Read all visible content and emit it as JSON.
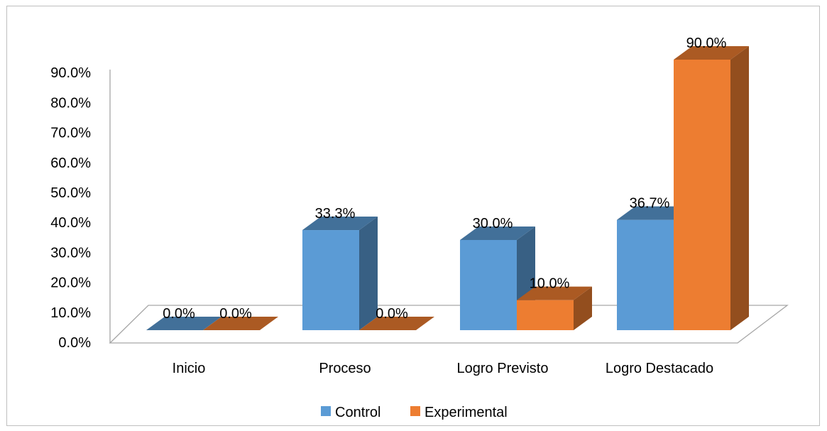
{
  "chart_data": {
    "type": "bar",
    "style": "3d-clustered-column",
    "categories": [
      "Inicio",
      "Proceso",
      "Logro Previsto",
      "Logro Destacado"
    ],
    "series": [
      {
        "name": "Control",
        "values": [
          0.0,
          33.3,
          30.0,
          36.7
        ],
        "labels": [
          "0.0%",
          "33.3%",
          "30.0%",
          "36.7%"
        ],
        "color": "#5b9bd5"
      },
      {
        "name": "Experimental",
        "values": [
          0.0,
          0.0,
          10.0,
          90.0
        ],
        "labels": [
          "0.0%",
          "0.0%",
          "10.0%",
          "90.0%"
        ],
        "color": "#ed7d31"
      }
    ],
    "y_ticks": [
      "0.0%",
      "10.0%",
      "20.0%",
      "30.0%",
      "40.0%",
      "50.0%",
      "60.0%",
      "70.0%",
      "80.0%",
      "90.0%"
    ],
    "ylim": [
      0,
      90
    ],
    "title": "",
    "xlabel": "",
    "ylabel": "",
    "grid": false,
    "legend_position": "bottom"
  }
}
